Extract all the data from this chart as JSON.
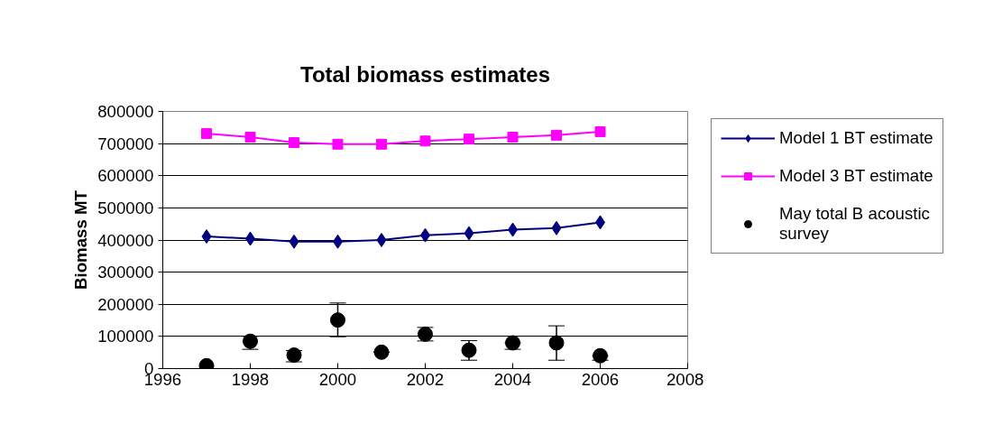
{
  "chart_data": {
    "type": "line",
    "title": "Total biomass estimates",
    "ylabel": "Biomass MT",
    "x": [
      1997,
      1998,
      1999,
      2000,
      2001,
      2002,
      2003,
      2004,
      2005,
      2006
    ],
    "series": [
      {
        "name": "Model 1 BT estimate",
        "color": "#000080",
        "marker": "diamond",
        "values": [
          411000,
          404000,
          395000,
          395000,
          400000,
          415000,
          421000,
          432000,
          437000,
          455000
        ]
      },
      {
        "name": "Model 3 BT estimate",
        "color": "#ff00ff",
        "marker": "square",
        "values": [
          731000,
          720000,
          703000,
          698000,
          698000,
          708000,
          714000,
          720000,
          726000,
          737000
        ]
      },
      {
        "name": "May total B acoustic survey",
        "type": "scatter",
        "color": "#000000",
        "marker": "circle",
        "values": [
          9000,
          85000,
          42000,
          151000,
          51000,
          107000,
          57000,
          80000,
          80000,
          40000
        ],
        "errors": [
          null,
          [
            60000,
            100000
          ],
          [
            21000,
            56000
          ],
          [
            99000,
            204000
          ],
          [
            51000,
            51000
          ],
          [
            86000,
            128000
          ],
          [
            26000,
            87000
          ],
          [
            60000,
            80000
          ],
          [
            26000,
            133000
          ],
          [
            26000,
            40000
          ]
        ]
      }
    ],
    "xlim": [
      1996,
      2008
    ],
    "xticks": [
      1996,
      1998,
      2000,
      2002,
      2004,
      2006,
      2008
    ],
    "ylim": [
      0,
      800000
    ],
    "yticks": [
      0,
      100000,
      200000,
      300000,
      400000,
      500000,
      600000,
      700000,
      800000
    ],
    "grid": "y",
    "legend": "top right"
  }
}
